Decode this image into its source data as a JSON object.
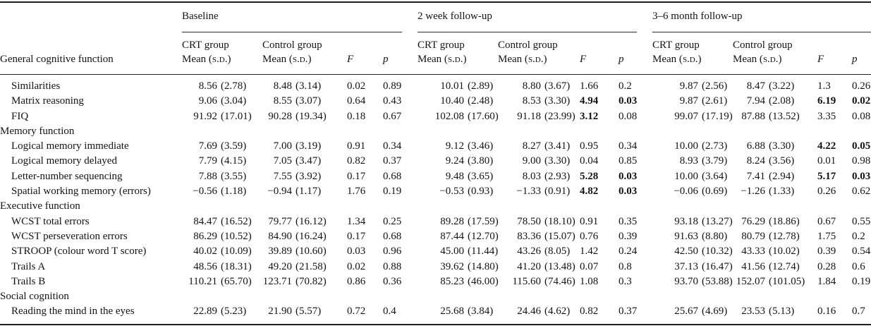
{
  "table": {
    "first_col_header": "General cognitive function",
    "groups": [
      {
        "label": "Baseline"
      },
      {
        "label": "2 week follow-up"
      },
      {
        "label": "3–6 month follow-up"
      }
    ],
    "sub": {
      "crt": "CRT group",
      "control": "Control group",
      "mean_prefix": "Mean (",
      "sd": "s.d.",
      "mean_suffix": ")",
      "f": "F",
      "p": "p"
    },
    "rows": [
      {
        "label": "Similarities",
        "section": false,
        "groups": [
          {
            "crt_mean": "8.56",
            "crt_sd": "(2.78)",
            "ctrl_mean": "8.48",
            "ctrl_sd": "(3.14)",
            "f": "0.02",
            "p": "0.89",
            "f_bold": false,
            "p_bold": false
          },
          {
            "crt_mean": "10.01",
            "crt_sd": "(2.89)",
            "ctrl_mean": "8.80",
            "ctrl_sd": "(3.67)",
            "f": "1.66",
            "p": "0.2",
            "f_bold": false,
            "p_bold": false
          },
          {
            "crt_mean": "9.87",
            "crt_sd": "(2.56)",
            "ctrl_mean": "8.47",
            "ctrl_sd": "(3.22)",
            "f": "1.3",
            "p": "0.26",
            "f_bold": false,
            "p_bold": false
          }
        ]
      },
      {
        "label": "Matrix reasoning",
        "section": false,
        "groups": [
          {
            "crt_mean": "9.06",
            "crt_sd": "(3.04)",
            "ctrl_mean": "8.55",
            "ctrl_sd": "(3.07)",
            "f": "0.64",
            "p": "0.43",
            "f_bold": false,
            "p_bold": false
          },
          {
            "crt_mean": "10.40",
            "crt_sd": "(2.48)",
            "ctrl_mean": "8.53",
            "ctrl_sd": "(3.30)",
            "f": "4.94",
            "p": "0.03",
            "f_bold": true,
            "p_bold": true
          },
          {
            "crt_mean": "9.87",
            "crt_sd": "(2.61)",
            "ctrl_mean": "7.94",
            "ctrl_sd": "(2.08)",
            "f": "6.19",
            "p": "0.02",
            "f_bold": true,
            "p_bold": true
          }
        ]
      },
      {
        "label": "FIQ",
        "section": false,
        "groups": [
          {
            "crt_mean": "91.92",
            "crt_sd": "(17.01)",
            "ctrl_mean": "90.28",
            "ctrl_sd": "(19.34)",
            "f": "0.18",
            "p": "0.67",
            "f_bold": false,
            "p_bold": false
          },
          {
            "crt_mean": "102.08",
            "crt_sd": "(17.60)",
            "ctrl_mean": "91.18",
            "ctrl_sd": "(23.99)",
            "f": "3.12",
            "p": "0.08",
            "f_bold": true,
            "p_bold": false
          },
          {
            "crt_mean": "99.07",
            "crt_sd": "(17.19)",
            "ctrl_mean": "87.88",
            "ctrl_sd": "(13.52)",
            "f": "3.35",
            "p": "0.08",
            "f_bold": false,
            "p_bold": false
          }
        ]
      },
      {
        "label": "Memory function",
        "section": true,
        "groups": []
      },
      {
        "label": "Logical memory immediate",
        "section": false,
        "groups": [
          {
            "crt_mean": "7.69",
            "crt_sd": "(3.59)",
            "ctrl_mean": "7.00",
            "ctrl_sd": "(3.19)",
            "f": "0.91",
            "p": "0.34",
            "f_bold": false,
            "p_bold": false
          },
          {
            "crt_mean": "9.12",
            "crt_sd": "(3.46)",
            "ctrl_mean": "8.27",
            "ctrl_sd": "(3.41)",
            "f": "0.95",
            "p": "0.34",
            "f_bold": false,
            "p_bold": false
          },
          {
            "crt_mean": "10.00",
            "crt_sd": "(2.73)",
            "ctrl_mean": "6.88",
            "ctrl_sd": "(3.30)",
            "f": "4.22",
            "p": "0.05",
            "f_bold": true,
            "p_bold": true
          }
        ]
      },
      {
        "label": "Logical memory delayed",
        "section": false,
        "groups": [
          {
            "crt_mean": "7.79",
            "crt_sd": "(4.15)",
            "ctrl_mean": "7.05",
            "ctrl_sd": "(3.47)",
            "f": "0.82",
            "p": "0.37",
            "f_bold": false,
            "p_bold": false
          },
          {
            "crt_mean": "9.24",
            "crt_sd": "(3.80)",
            "ctrl_mean": "9.00",
            "ctrl_sd": "(3.30)",
            "f": "0.04",
            "p": "0.85",
            "f_bold": false,
            "p_bold": false
          },
          {
            "crt_mean": "8.93",
            "crt_sd": "(3.79)",
            "ctrl_mean": "8.24",
            "ctrl_sd": "(3.56)",
            "f": "0.01",
            "p": "0.98",
            "f_bold": false,
            "p_bold": false
          }
        ]
      },
      {
        "label": "Letter-number sequencing",
        "section": false,
        "groups": [
          {
            "crt_mean": "7.88",
            "crt_sd": "(3.55)",
            "ctrl_mean": "7.55",
            "ctrl_sd": "(3.92)",
            "f": "0.17",
            "p": "0.68",
            "f_bold": false,
            "p_bold": false
          },
          {
            "crt_mean": "9.48",
            "crt_sd": "(3.65)",
            "ctrl_mean": "8.03",
            "ctrl_sd": "(2.93)",
            "f": "5.28",
            "p": "0.03",
            "f_bold": true,
            "p_bold": true
          },
          {
            "crt_mean": "10.00",
            "crt_sd": "(3.64)",
            "ctrl_mean": "7.41",
            "ctrl_sd": "(2.94)",
            "f": "5.17",
            "p": "0.03",
            "f_bold": true,
            "p_bold": true
          }
        ]
      },
      {
        "label": "Spatial working memory (errors)",
        "section": false,
        "groups": [
          {
            "crt_mean": "−0.56",
            "crt_sd": "(1.18)",
            "ctrl_mean": "−0.94",
            "ctrl_sd": "(1.17)",
            "f": "1.76",
            "p": "0.19",
            "f_bold": false,
            "p_bold": false
          },
          {
            "crt_mean": "−0.53",
            "crt_sd": "(0.93)",
            "ctrl_mean": "−1.33",
            "ctrl_sd": "(0.91)",
            "f": "4.82",
            "p": "0.03",
            "f_bold": true,
            "p_bold": true
          },
          {
            "crt_mean": "−0.06",
            "crt_sd": "(0.69)",
            "ctrl_mean": "−1.26",
            "ctrl_sd": "(1.33)",
            "f": "0.26",
            "p": "0.62",
            "f_bold": false,
            "p_bold": false
          }
        ]
      },
      {
        "label": "Executive function",
        "section": true,
        "groups": []
      },
      {
        "label": "WCST total errors",
        "section": false,
        "groups": [
          {
            "crt_mean": "84.47",
            "crt_sd": "(16.52)",
            "ctrl_mean": "79.77",
            "ctrl_sd": "(16.12)",
            "f": "1.34",
            "p": "0.25",
            "f_bold": false,
            "p_bold": false
          },
          {
            "crt_mean": "89.28",
            "crt_sd": "(17.59)",
            "ctrl_mean": "78.50",
            "ctrl_sd": "(18.10)",
            "f": "0.91",
            "p": "0.35",
            "f_bold": false,
            "p_bold": false
          },
          {
            "crt_mean": "93.18",
            "crt_sd": "(13.27)",
            "ctrl_mean": "76.29",
            "ctrl_sd": "(18.86)",
            "f": "0.67",
            "p": "0.55",
            "f_bold": false,
            "p_bold": false
          }
        ]
      },
      {
        "label": "WCST perseveration errors",
        "section": false,
        "groups": [
          {
            "crt_mean": "86.29",
            "crt_sd": "(10.52)",
            "ctrl_mean": "84.90",
            "ctrl_sd": "(16.24)",
            "f": "0.17",
            "p": "0.68",
            "f_bold": false,
            "p_bold": false
          },
          {
            "crt_mean": "87.44",
            "crt_sd": "(12.70)",
            "ctrl_mean": "83.36",
            "ctrl_sd": "(15.07)",
            "f": "0.76",
            "p": "0.39",
            "f_bold": false,
            "p_bold": false
          },
          {
            "crt_mean": "91.63",
            "crt_sd": "(8.80)",
            "ctrl_mean": "80.79",
            "ctrl_sd": "(12.78)",
            "f": "1.75",
            "p": "0.2",
            "f_bold": false,
            "p_bold": false
          }
        ]
      },
      {
        "label": "STROOP (colour word T score)",
        "section": false,
        "groups": [
          {
            "crt_mean": "40.02",
            "crt_sd": "(10.09)",
            "ctrl_mean": "39.89",
            "ctrl_sd": "(10.60)",
            "f": "0.03",
            "p": "0.96",
            "f_bold": false,
            "p_bold": false
          },
          {
            "crt_mean": "45.00",
            "crt_sd": "(11.44)",
            "ctrl_mean": "43.26",
            "ctrl_sd": "(8.05)",
            "f": "1.42",
            "p": "0.24",
            "f_bold": false,
            "p_bold": false
          },
          {
            "crt_mean": "42.50",
            "crt_sd": "(10.32)",
            "ctrl_mean": "43.33",
            "ctrl_sd": "(10.02)",
            "f": "0.39",
            "p": "0.54",
            "f_bold": false,
            "p_bold": false
          }
        ]
      },
      {
        "label": "Trails A",
        "section": false,
        "groups": [
          {
            "crt_mean": "48.56",
            "crt_sd": "(18.31)",
            "ctrl_mean": "49.20",
            "ctrl_sd": "(21.58)",
            "f": "0.02",
            "p": "0.88",
            "f_bold": false,
            "p_bold": false
          },
          {
            "crt_mean": "39.62",
            "crt_sd": "(14.80)",
            "ctrl_mean": "41.20",
            "ctrl_sd": "(13.48)",
            "f": "0.07",
            "p": "0.8",
            "f_bold": false,
            "p_bold": false
          },
          {
            "crt_mean": "37.13",
            "crt_sd": "(16.47)",
            "ctrl_mean": "41.56",
            "ctrl_sd": "(12.74)",
            "f": "0.28",
            "p": "0.6",
            "f_bold": false,
            "p_bold": false
          }
        ]
      },
      {
        "label": "Trails B",
        "section": false,
        "groups": [
          {
            "crt_mean": "110.21",
            "crt_sd": "(65.70)",
            "ctrl_mean": "123.71",
            "ctrl_sd": "(70.82)",
            "f": "0.86",
            "p": "0.36",
            "f_bold": false,
            "p_bold": false
          },
          {
            "crt_mean": "85.23",
            "crt_sd": "(46.00)",
            "ctrl_mean": "115.60",
            "ctrl_sd": "(74.46)",
            "f": "1.08",
            "p": "0.3",
            "f_bold": false,
            "p_bold": false
          },
          {
            "crt_mean": "93.70",
            "crt_sd": "(53.88)",
            "ctrl_mean": "152.07",
            "ctrl_sd": "(101.05)",
            "f": "1.84",
            "p": "0.19",
            "f_bold": false,
            "p_bold": false
          }
        ]
      },
      {
        "label": "Social cognition",
        "section": true,
        "groups": []
      },
      {
        "label": "Reading the mind in the eyes",
        "section": false,
        "groups": [
          {
            "crt_mean": "22.89",
            "crt_sd": "(5.23)",
            "ctrl_mean": "21.90",
            "ctrl_sd": "(5.57)",
            "f": "0.72",
            "p": "0.4",
            "f_bold": false,
            "p_bold": false
          },
          {
            "crt_mean": "25.68",
            "crt_sd": "(3.84)",
            "ctrl_mean": "24.46",
            "ctrl_sd": "(4.62)",
            "f": "0.82",
            "p": "0.37",
            "f_bold": false,
            "p_bold": false
          },
          {
            "crt_mean": "25.67",
            "crt_sd": "(4.69)",
            "ctrl_mean": "23.53",
            "ctrl_sd": "(5.13)",
            "f": "0.16",
            "p": "0.7",
            "f_bold": false,
            "p_bold": false
          }
        ]
      }
    ]
  }
}
